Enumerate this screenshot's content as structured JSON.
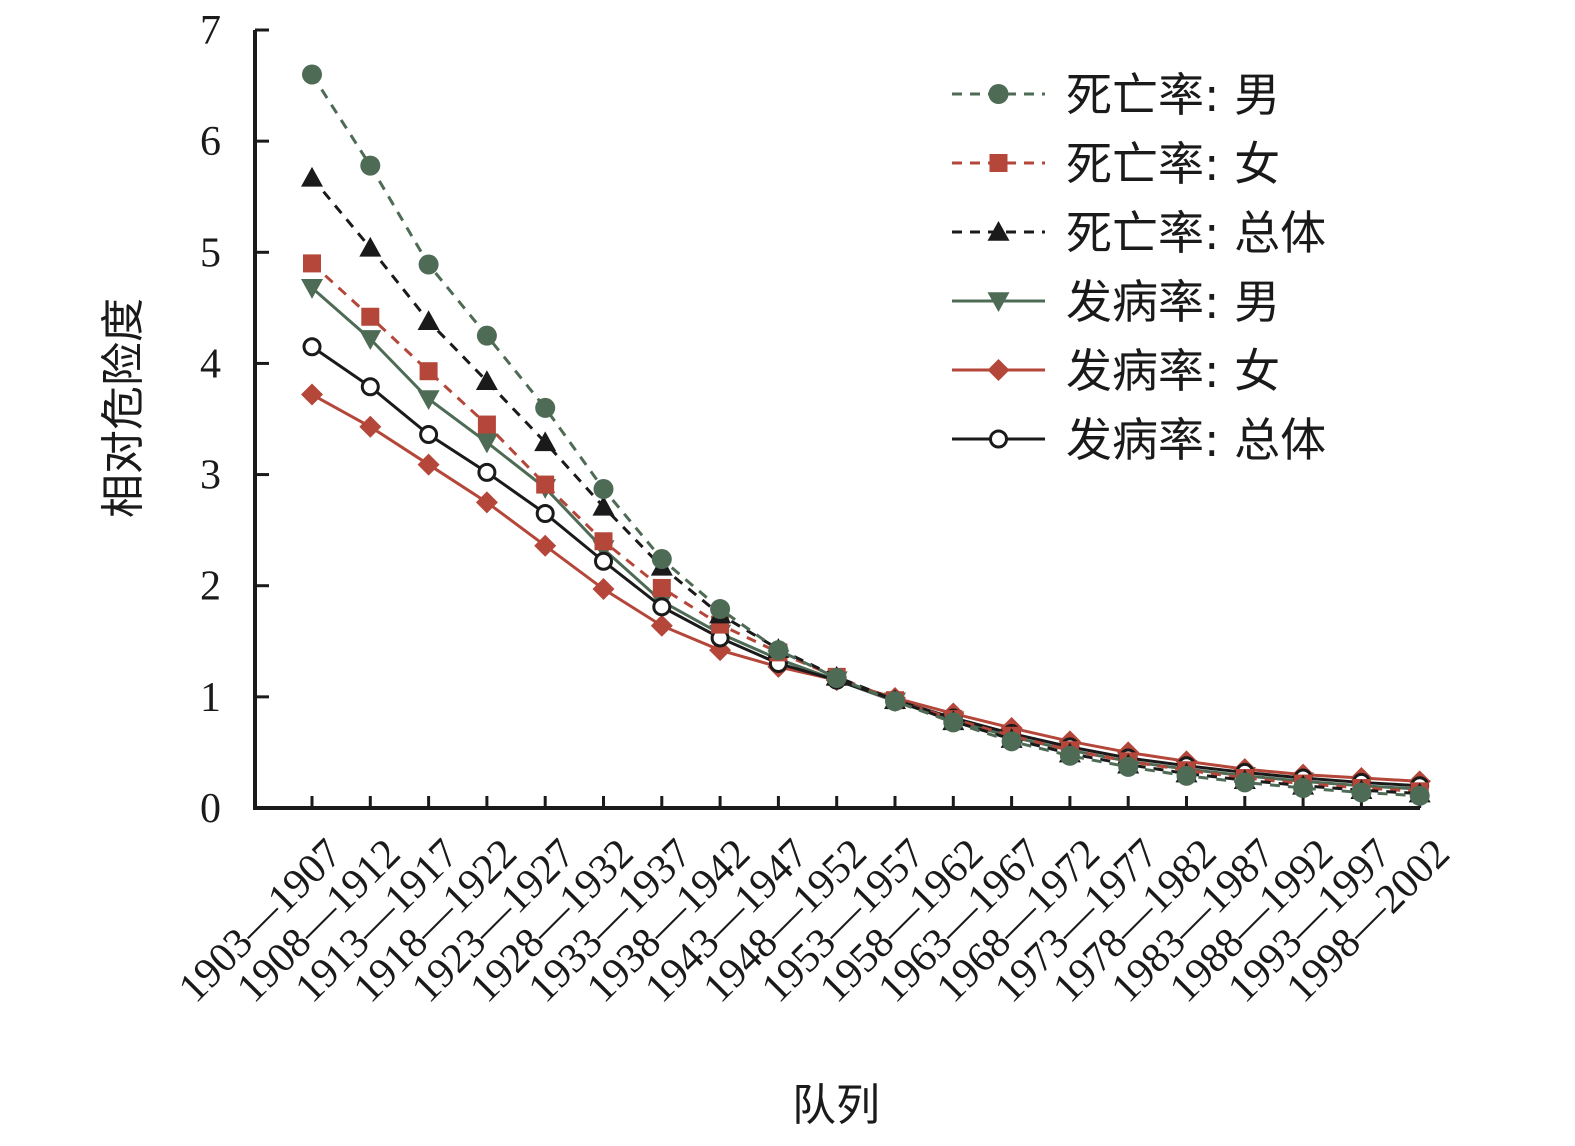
{
  "chart_data": {
    "type": "line",
    "xlabel": "队列",
    "ylabel": "相对危险度",
    "ylim": [
      0,
      7
    ],
    "yticks": [
      "0",
      "1",
      "2",
      "3",
      "4",
      "5",
      "6",
      "7"
    ],
    "grid": false,
    "legend_position": "top-right",
    "categories": [
      "1903—1907",
      "1908—1912",
      "1913—1917",
      "1918—1922",
      "1923—1927",
      "1928—1932",
      "1933—1937",
      "1938—1942",
      "1943—1947",
      "1948—1952",
      "1953—1957",
      "1958—1962",
      "1963—1967",
      "1968—1972",
      "1973—1977",
      "1978—1982",
      "1983—1987",
      "1988—1992",
      "1993—1997",
      "1998—2002"
    ],
    "series": [
      {
        "name": "死亡率: 男",
        "style": "dashed",
        "marker": "circle-filled",
        "color": "#4e6b55",
        "values": [
          6.6,
          5.78,
          4.89,
          4.25,
          3.6,
          2.87,
          2.24,
          1.79,
          1.42,
          1.17,
          0.96,
          0.77,
          0.6,
          0.47,
          0.37,
          0.29,
          0.23,
          0.18,
          0.14,
          0.11
        ]
      },
      {
        "name": "死亡率: 女",
        "style": "dashed",
        "marker": "square-filled",
        "color": "#b5463a",
        "values": [
          4.9,
          4.42,
          3.93,
          3.45,
          2.91,
          2.4,
          1.98,
          1.65,
          1.4,
          1.18,
          0.97,
          0.8,
          0.65,
          0.52,
          0.42,
          0.34,
          0.27,
          0.22,
          0.18,
          0.15
        ]
      },
      {
        "name": "死亡率: 总体",
        "style": "dashed",
        "marker": "triangle-up-filled",
        "color": "#1a1a1a",
        "values": [
          5.67,
          5.04,
          4.38,
          3.84,
          3.29,
          2.71,
          2.17,
          1.74,
          1.43,
          1.18,
          0.97,
          0.78,
          0.62,
          0.49,
          0.39,
          0.31,
          0.25,
          0.2,
          0.16,
          0.13
        ]
      },
      {
        "name": "发病率: 男",
        "style": "solid",
        "marker": "triangle-down-filled",
        "color": "#4e6b55",
        "values": [
          4.68,
          4.22,
          3.68,
          3.29,
          2.88,
          2.33,
          1.86,
          1.57,
          1.34,
          1.15,
          0.96,
          0.79,
          0.64,
          0.52,
          0.42,
          0.35,
          0.29,
          0.24,
          0.2,
          0.17
        ]
      },
      {
        "name": "发病率: 女",
        "style": "solid",
        "marker": "diamond-filled",
        "color": "#b5463a",
        "values": [
          3.72,
          3.43,
          3.09,
          2.75,
          2.36,
          1.97,
          1.64,
          1.42,
          1.27,
          1.15,
          0.99,
          0.85,
          0.72,
          0.6,
          0.5,
          0.42,
          0.35,
          0.3,
          0.27,
          0.24
        ]
      },
      {
        "name": "发病率: 总体",
        "style": "solid",
        "marker": "circle-open",
        "color": "#1a1a1a",
        "values": [
          4.15,
          3.79,
          3.36,
          3.02,
          2.65,
          2.22,
          1.81,
          1.53,
          1.3,
          1.15,
          0.97,
          0.81,
          0.67,
          0.55,
          0.45,
          0.38,
          0.32,
          0.27,
          0.23,
          0.2
        ]
      }
    ]
  }
}
